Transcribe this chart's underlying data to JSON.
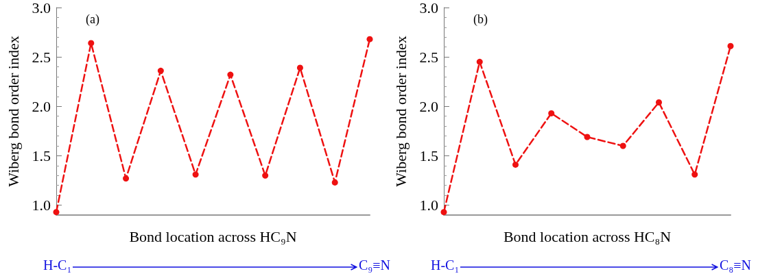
{
  "chart_data": [
    {
      "type": "line",
      "xlabel": "Bond location across HC₉N",
      "ylabel": "Wiberg bond order index",
      "annotations": [
        "(a)",
        "H-C₁",
        "C₉≡N"
      ],
      "categories": [
        null,
        null,
        null,
        null,
        null,
        null,
        null,
        null,
        null,
        null
      ],
      "series": [
        {
          "color": "#ee1111",
          "values": [
            0.93,
            2.64,
            1.27,
            2.36,
            1.31,
            2.32,
            1.3,
            2.39,
            1.23,
            2.68
          ]
        }
      ],
      "ylim": [
        0.9,
        3.0
      ],
      "yticks": [
        {
          "value": 1,
          "label": "1.0"
        },
        {
          "value": 1.5,
          "label": "1.5"
        },
        {
          "value": 2,
          "label": "2.0"
        },
        {
          "value": 2.5,
          "label": "2.5"
        },
        {
          "value": 3,
          "label": "3.0"
        }
      ],
      "tick_labels": "y",
      "grid": false,
      "marker": "circle",
      "line_style": "dashed"
    },
    {
      "type": "line",
      "xlabel": "Bond location across HC₈N",
      "ylabel": "Wiberg bond order index",
      "annotations": [
        "(b)",
        "H-C₁",
        "C₈≡N"
      ],
      "categories": [
        null,
        null,
        null,
        null,
        null,
        null,
        null,
        null,
        null
      ],
      "series": [
        {
          "color": "#ee1111",
          "values": [
            0.93,
            2.45,
            1.41,
            1.93,
            1.69,
            1.6,
            2.04,
            1.31,
            2.61
          ]
        }
      ],
      "ylim": [
        0.9,
        3.0
      ],
      "yticks": [
        {
          "value": 1,
          "label": "1.0"
        },
        {
          "value": 1.5,
          "label": "1.5"
        },
        {
          "value": 2,
          "label": "2.0"
        },
        {
          "value": 2.5,
          "label": "2.5"
        },
        {
          "value": 3,
          "label": "3.0"
        }
      ],
      "tick_labels": "y",
      "grid": false,
      "marker": "circle",
      "line_style": "dashed"
    }
  ]
}
